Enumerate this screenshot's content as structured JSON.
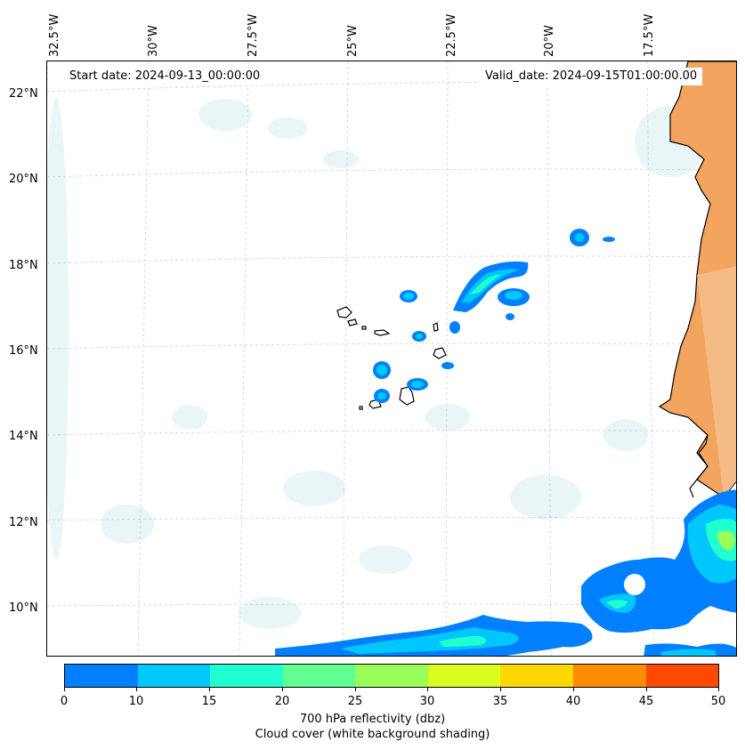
{
  "map": {
    "start_date": "Start date: 2024-09-13_00:00:00",
    "valid_date": "Valid_date: 2024-09-15T01:00:00.00",
    "lon_labels": [
      "32.5°W",
      "30°W",
      "27.5°W",
      "25°W",
      "22.5°W",
      "20°W",
      "17.5°W"
    ],
    "lat_labels": [
      "22°N",
      "20°N",
      "18°N",
      "16°N",
      "14°N",
      "12°N",
      "10°N"
    ],
    "colors": {
      "land": "#f3a55f",
      "ocean": "#ffffff",
      "coastline": "#000000",
      "gridline": "#c8c8c8",
      "cloud_shade": "#d6ebf0"
    }
  },
  "colorbar": {
    "ticks": [
      "0",
      "10",
      "15",
      "20",
      "25",
      "30",
      "35",
      "40",
      "45",
      "50"
    ],
    "colors": [
      "#0080ff",
      "#00c8ff",
      "#20ffd0",
      "#60ff90",
      "#98ff58",
      "#d8ff20",
      "#ffd800",
      "#ff8c00",
      "#ff4800"
    ],
    "label_line1": "700 hPa reflectivity (dbz)",
    "label_line2": "Cloud cover (white background shading)"
  }
}
